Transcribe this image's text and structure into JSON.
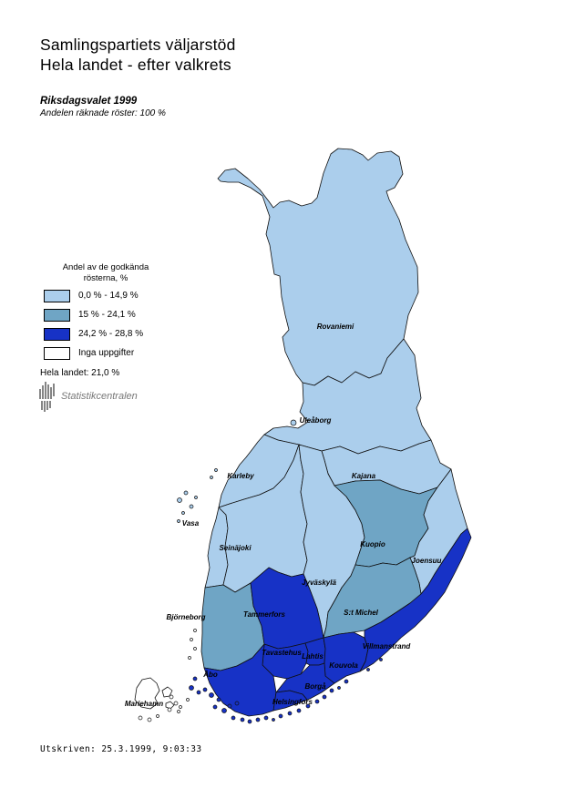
{
  "header": {
    "title_line1": "Samlingspartiets väljarstöd",
    "title_line2": "Hela landet - efter valkrets",
    "subtitle_line1": "Riksdagsvalet 1999",
    "subtitle_line2": "Andelen räknade röster: 100 %"
  },
  "legend": {
    "title_line1": "Andel av de godkända",
    "title_line2": "rösterna, %",
    "items": [
      {
        "key": "light",
        "label": "0,0 % - 14,9 %",
        "color": "#ABCEEC"
      },
      {
        "key": "medium",
        "label": "15 % - 24,1 %",
        "color": "#6FA5C5"
      },
      {
        "key": "dark",
        "label": "24,2 % - 28,8 %",
        "color": "#1732C6"
      },
      {
        "key": "none",
        "label": "Inga uppgifter",
        "color": "#FFFFFF"
      }
    ],
    "total_line": "Hela landet: 21,0 %"
  },
  "logo": {
    "text": "Statistikcentralen"
  },
  "map": {
    "regions": [
      {
        "id": "rovaniemi",
        "label": "Rovaniemi",
        "category": "light"
      },
      {
        "id": "uleaborg",
        "label": "Uleåborg",
        "category": "light"
      },
      {
        "id": "kajana",
        "label": "Kajana",
        "category": "light"
      },
      {
        "id": "karleby",
        "label": "Karleby",
        "category": "light"
      },
      {
        "id": "vasa",
        "label": "Vasa",
        "category": "light"
      },
      {
        "id": "seinajoki",
        "label": "Seinäjoki",
        "category": "light"
      },
      {
        "id": "jyvaskyla",
        "label": "Jyväskylä",
        "category": "light"
      },
      {
        "id": "kuopio",
        "label": "Kuopio",
        "category": "medium"
      },
      {
        "id": "joensuu",
        "label": "Joensuu",
        "category": "light"
      },
      {
        "id": "stmichel",
        "label": "S:t Michel",
        "category": "medium"
      },
      {
        "id": "bjorneborg",
        "label": "Björneborg",
        "category": "medium"
      },
      {
        "id": "tammerfors",
        "label": "Tammerfors",
        "category": "dark"
      },
      {
        "id": "tavastehus",
        "label": "Tavastehus",
        "category": "dark"
      },
      {
        "id": "lahtis",
        "label": "Lahtis",
        "category": "dark"
      },
      {
        "id": "kouvola",
        "label": "Kouvola",
        "category": "dark"
      },
      {
        "id": "villmanstrand",
        "label": "Villmanstrand",
        "category": "dark"
      },
      {
        "id": "abo",
        "label": "Åbo",
        "category": "dark"
      },
      {
        "id": "borga",
        "label": "Borgå",
        "category": "dark"
      },
      {
        "id": "helsingfors",
        "label": "Helsingfors",
        "category": "dark"
      },
      {
        "id": "mariehamn",
        "label": "Mariehamn",
        "category": "none"
      }
    ]
  },
  "footer": {
    "printed": "Utskriven: 25.3.1999,  9:03:33"
  }
}
